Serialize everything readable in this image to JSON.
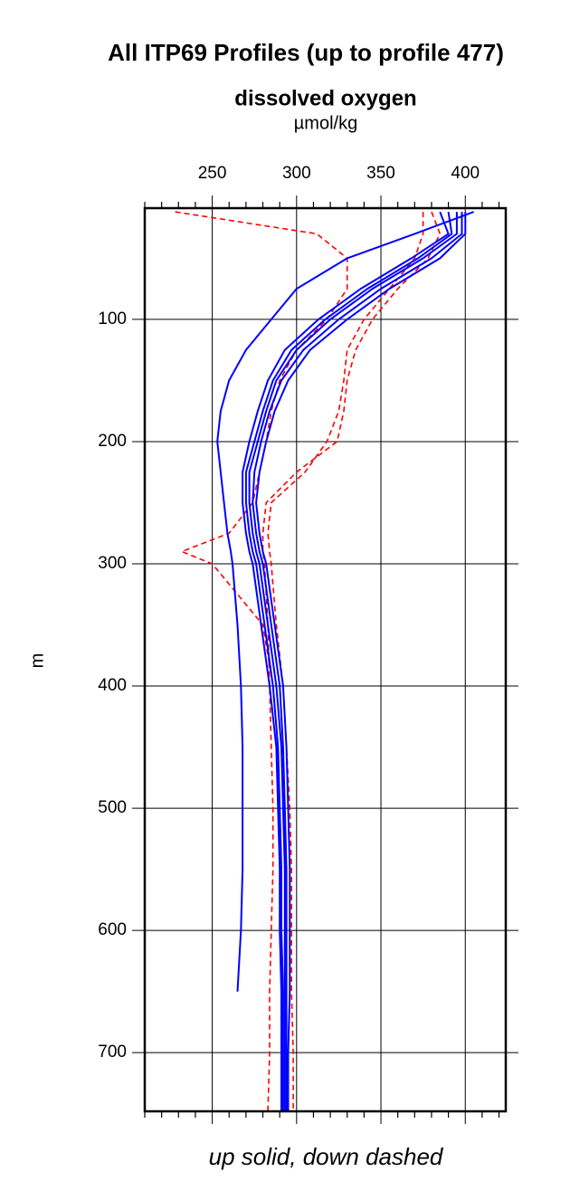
{
  "chart_data": {
    "type": "line",
    "title": "All ITP69 Profiles (up to profile 477)",
    "x_label": "dissolved oxygen",
    "x_unit": "µmol/kg",
    "y_label": "m",
    "note": "up solid, down dashed",
    "xlim": [
      210,
      424
    ],
    "ylim": [
      9,
      748
    ],
    "y_inverted": true,
    "grid": true,
    "xticks": [
      250,
      300,
      350,
      400
    ],
    "xminorticks": [
      210,
      220,
      230,
      240,
      260,
      270,
      280,
      290,
      310,
      320,
      330,
      340,
      360,
      370,
      380,
      390,
      410,
      420
    ],
    "yticks": [
      100,
      200,
      300,
      400,
      500,
      600,
      700
    ],
    "y": [
      12,
      30,
      50,
      75,
      100,
      125,
      150,
      175,
      200,
      225,
      250,
      275,
      290,
      300,
      350,
      400,
      450,
      500,
      550,
      600,
      650,
      700,
      748
    ],
    "series": [
      {
        "color": "#ff0000",
        "dashed": true,
        "values": [
          375,
          375,
          370,
          355,
          340,
          330,
          328,
          325,
          318,
          305,
          285,
          283,
          284,
          285,
          288,
          292,
          294,
          296,
          297,
          297,
          297,
          298,
          298
        ]
      },
      {
        "color": "#ff0000",
        "dashed": true,
        "values": [
          228,
          312,
          330,
          330,
          318,
          300,
          290,
          285,
          282,
          278,
          274,
          260,
          232,
          250,
          280,
          286,
          289,
          290,
          291,
          291,
          291,
          292,
          292
        ]
      },
      {
        "color": "#ff0000",
        "dashed": true,
        "values": [
          380,
          385,
          378,
          360,
          345,
          335,
          330,
          328,
          324,
          300,
          282,
          280,
          280,
          281,
          283,
          284,
          285,
          286,
          286,
          285,
          284,
          284,
          283
        ]
      },
      {
        "color": "#0000ff",
        "dashed": false,
        "values": [
          405,
          370,
          330,
          300,
          285,
          270,
          260,
          255,
          253,
          255,
          257,
          259,
          261,
          262,
          265,
          267,
          268,
          268,
          268,
          267,
          265,
          null,
          null
        ]
      },
      {
        "color": "#0000ff",
        "dashed": false,
        "values": [
          400,
          400,
          385,
          355,
          330,
          308,
          295,
          287,
          282,
          278,
          276,
          278,
          280,
          282,
          287,
          292,
          294,
          295,
          296,
          296,
          296,
          295,
          295
        ]
      },
      {
        "color": "#0000ff",
        "dashed": false,
        "values": [
          395,
          395,
          375,
          345,
          320,
          300,
          288,
          282,
          277,
          272,
          272,
          274,
          276,
          278,
          283,
          288,
          291,
          292,
          293,
          293,
          293,
          293,
          293
        ]
      },
      {
        "color": "#0000ff",
        "dashed": false,
        "values": [
          390,
          392,
          372,
          342,
          317,
          297,
          286,
          280,
          275,
          270,
          270,
          272,
          274,
          276,
          281,
          286,
          289,
          290,
          291,
          291,
          292,
          292,
          292
        ]
      },
      {
        "color": "#0000ff",
        "dashed": false,
        "values": [
          385,
          390,
          368,
          338,
          313,
          293,
          283,
          277,
          272,
          268,
          268,
          270,
          272,
          274,
          279,
          284,
          288,
          289,
          290,
          290,
          291,
          291,
          291
        ]
      },
      {
        "color": "#0000ff",
        "dashed": false,
        "values": [
          398,
          398,
          380,
          350,
          325,
          304,
          291,
          284,
          279,
          275,
          274,
          276,
          278,
          280,
          285,
          290,
          292,
          293,
          294,
          294,
          294,
          294,
          294
        ]
      }
    ]
  }
}
